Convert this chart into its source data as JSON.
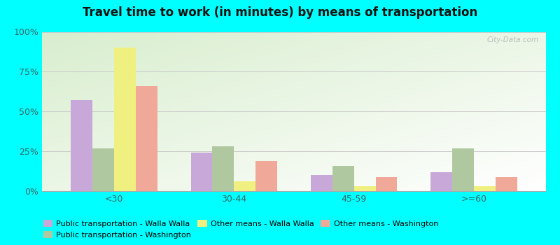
{
  "title": "Travel time to work (in minutes) by means of transportation",
  "categories": [
    "<30",
    "30-44",
    "45-59",
    ">=60"
  ],
  "series_order": [
    "Public transportation - Walla Walla",
    "Public transportation - Washington",
    "Other means - Walla Walla",
    "Other means - Washington"
  ],
  "series": {
    "Public transportation - Walla Walla": [
      57,
      24,
      10,
      12
    ],
    "Public transportation - Washington": [
      27,
      28,
      16,
      27
    ],
    "Other means - Walla Walla": [
      90,
      6,
      3,
      3
    ],
    "Other means - Washington": [
      66,
      19,
      9,
      9
    ]
  },
  "colors": {
    "Public transportation - Walla Walla": "#c8a8d8",
    "Public transportation - Washington": "#b0c8a0",
    "Other means - Walla Walla": "#f0f080",
    "Other means - Washington": "#f0a898"
  },
  "ylim": [
    0,
    100
  ],
  "yticks": [
    0,
    25,
    50,
    75,
    100
  ],
  "yticklabels": [
    "0%",
    "25%",
    "50%",
    "75%",
    "100%"
  ],
  "background_color_outer": "#00ffff",
  "watermark": "City-Data.com",
  "bar_width": 0.18,
  "title_fontsize": 12,
  "tick_fontsize": 9,
  "legend_fontsize": 8
}
